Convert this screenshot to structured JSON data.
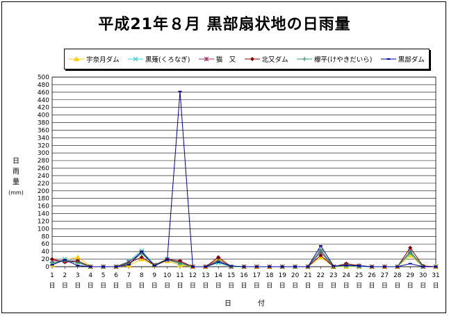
{
  "title": "平成21年８月  黒部扇状地の日雨量",
  "chart_data": {
    "type": "line",
    "xlabel": "日　付",
    "ylabel": [
      "日",
      "雨",
      "量"
    ],
    "yunit": "(mm)",
    "ylim": [
      0,
      500
    ],
    "ytick_step": 20,
    "grid": "horizontal",
    "legend_position": "top",
    "x": [
      1,
      2,
      3,
      4,
      5,
      6,
      7,
      8,
      9,
      10,
      11,
      12,
      13,
      14,
      15,
      16,
      17,
      18,
      19,
      20,
      21,
      22,
      23,
      24,
      25,
      26,
      27,
      28,
      29,
      30,
      31
    ],
    "x_suffix": "日",
    "series": [
      {
        "name": "宇奈月ダム",
        "color": "#FFCC00",
        "marker": "triangle",
        "values": [
          5,
          18,
          25,
          0,
          0,
          0,
          3,
          20,
          3,
          15,
          4,
          0,
          0,
          22,
          0,
          0,
          0,
          0,
          0,
          0,
          0,
          25,
          0,
          0,
          0,
          0,
          0,
          0,
          30,
          0,
          0
        ]
      },
      {
        "name": "黒薙(くろなぎ)",
        "color": "#33CCCC",
        "marker": "x",
        "values": [
          8,
          20,
          12,
          0,
          0,
          0,
          15,
          42,
          5,
          20,
          10,
          0,
          0,
          10,
          0,
          0,
          0,
          0,
          0,
          0,
          0,
          38,
          0,
          2,
          0,
          0,
          0,
          0,
          35,
          0,
          0
        ]
      },
      {
        "name": "猫　又",
        "color": "#993366",
        "marker": "star",
        "values": [
          15,
          15,
          15,
          0,
          0,
          0,
          12,
          38,
          4,
          18,
          12,
          0,
          0,
          18,
          0,
          0,
          0,
          0,
          0,
          0,
          0,
          40,
          0,
          5,
          2,
          0,
          0,
          0,
          40,
          0,
          0
        ]
      },
      {
        "name": "北又ダム",
        "color": "#800000",
        "marker": "diamond",
        "values": [
          20,
          12,
          15,
          0,
          0,
          0,
          10,
          25,
          4,
          20,
          15,
          0,
          0,
          25,
          0,
          0,
          0,
          0,
          0,
          0,
          0,
          30,
          0,
          8,
          3,
          0,
          0,
          0,
          50,
          2,
          0
        ]
      },
      {
        "name": "欅平(けやきだいら)",
        "color": "#339966",
        "marker": "plus",
        "values": [
          10,
          15,
          10,
          0,
          0,
          0,
          8,
          35,
          3,
          18,
          8,
          0,
          0,
          15,
          0,
          0,
          0,
          0,
          0,
          0,
          0,
          45,
          0,
          4,
          2,
          0,
          0,
          0,
          38,
          0,
          0
        ]
      },
      {
        "name": "黒部ダム",
        "color": "#000099",
        "marker": "dash",
        "values": [
          5,
          18,
          3,
          0,
          0,
          0,
          5,
          40,
          2,
          18,
          462,
          0,
          0,
          12,
          2,
          0,
          0,
          0,
          0,
          0,
          0,
          55,
          2,
          3,
          2,
          0,
          0,
          0,
          8,
          0,
          0
        ]
      }
    ]
  }
}
